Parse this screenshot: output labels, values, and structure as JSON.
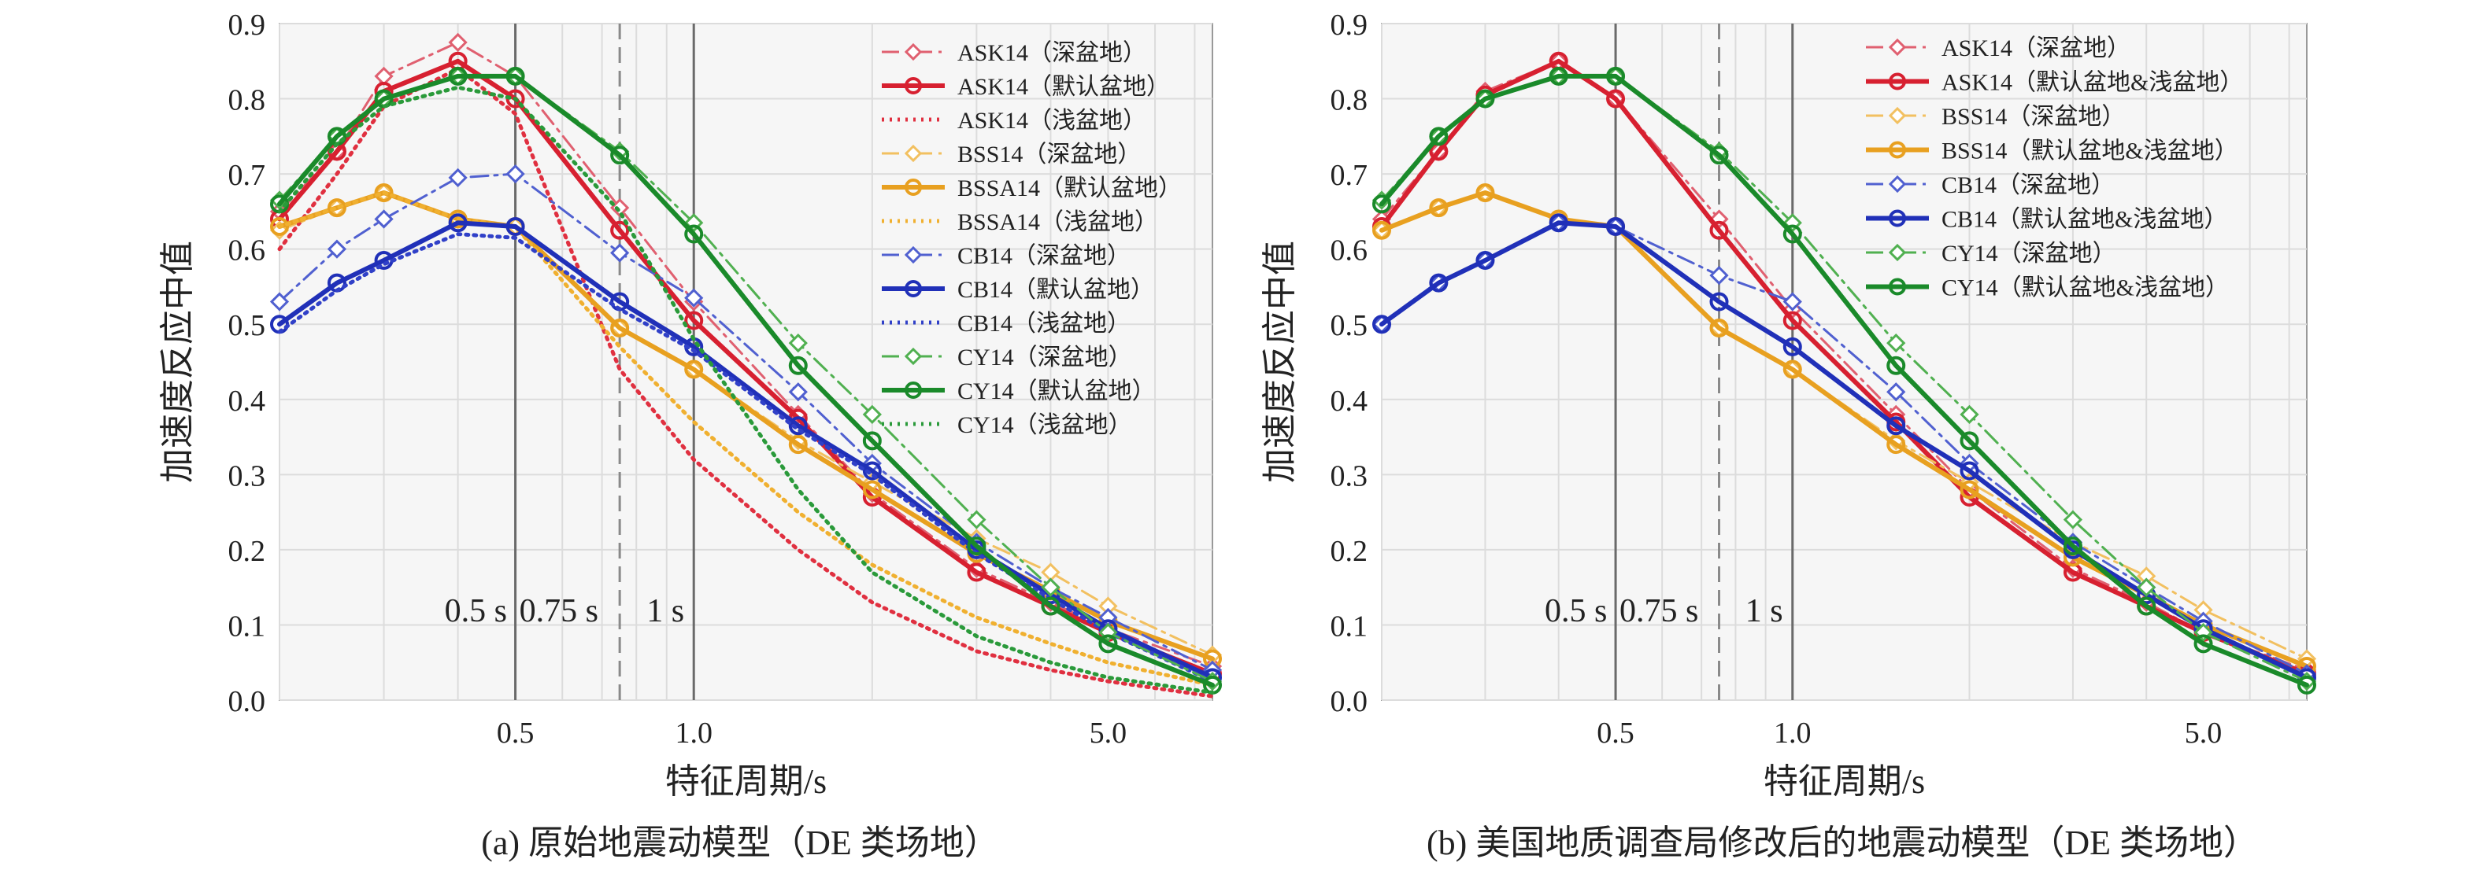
{
  "chart_data": [
    {
      "id": "a",
      "type": "line",
      "caption": "(a) 原始地震动模型（DE 类场地）",
      "xlabel": "特征周期/s",
      "ylabel": "加速度反应中值",
      "x_scale": "log",
      "xlim": [
        0.2,
        7.5
      ],
      "ylim": [
        0,
        0.9
      ],
      "x_ticks": [
        {
          "v": 0.5,
          "label": "0.5"
        },
        {
          "v": 1.0,
          "label": "1.0"
        },
        {
          "v": 5.0,
          "label": "5.0"
        }
      ],
      "y_ticks": [
        "0.0",
        "0.1",
        "0.2",
        "0.3",
        "0.4",
        "0.5",
        "0.6",
        "0.7",
        "0.8",
        "0.9"
      ],
      "grid": true,
      "legend_position": "top-right",
      "vlines": [
        {
          "x": 0.5,
          "style": "solid",
          "label": "0.5 s"
        },
        {
          "x": 0.75,
          "style": "dashed",
          "label": "0.75 s"
        },
        {
          "x": 1.0,
          "style": "solid",
          "label": "1 s"
        }
      ],
      "x": [
        0.2,
        0.25,
        0.3,
        0.4,
        0.5,
        0.75,
        1.0,
        1.5,
        2.0,
        3.0,
        4.0,
        5.0,
        7.5
      ],
      "series": [
        {
          "name": "ASK14（深盆地）",
          "color": "#e06070",
          "style": "dashdot",
          "marker": "diamond",
          "width": 3,
          "values": [
            0.65,
            0.73,
            0.83,
            0.875,
            0.83,
            0.655,
            0.53,
            0.38,
            0.275,
            0.175,
            0.13,
            0.095,
            0.045
          ]
        },
        {
          "name": "ASK14（默认盆地）",
          "color": "#d72030",
          "style": "solid",
          "marker": "circle",
          "width": 6,
          "values": [
            0.64,
            0.73,
            0.81,
            0.85,
            0.8,
            0.625,
            0.505,
            0.375,
            0.27,
            0.17,
            0.125,
            0.09,
            0.035
          ]
        },
        {
          "name": "ASK14（浅盆地）",
          "color": "#e03040",
          "style": "dotted",
          "marker": "none",
          "width": 5,
          "values": [
            0.6,
            0.7,
            0.79,
            0.84,
            0.78,
            0.44,
            0.32,
            0.2,
            0.13,
            0.065,
            0.04,
            0.025,
            0.005
          ]
        },
        {
          "name": "BSS14（深盆地）",
          "color": "#f2c060",
          "style": "dashdot",
          "marker": "diamond",
          "width": 3,
          "values": [
            0.625,
            0.655,
            0.675,
            0.64,
            0.63,
            0.495,
            0.44,
            0.345,
            0.29,
            0.215,
            0.17,
            0.125,
            0.06
          ]
        },
        {
          "name": "BSSA14（默认盆地）",
          "color": "#e8a020",
          "style": "solid",
          "marker": "circle",
          "width": 6,
          "values": [
            0.63,
            0.655,
            0.675,
            0.64,
            0.63,
            0.495,
            0.44,
            0.34,
            0.28,
            0.195,
            0.145,
            0.105,
            0.055
          ]
        },
        {
          "name": "BSSA14（浅盆地）",
          "color": "#f0b030",
          "style": "dotted",
          "marker": "none",
          "width": 5,
          "values": [
            0.63,
            0.655,
            0.675,
            0.64,
            0.63,
            0.47,
            0.37,
            0.25,
            0.18,
            0.11,
            0.075,
            0.05,
            0.02
          ]
        },
        {
          "name": "CB14（深盆地）",
          "color": "#5060d0",
          "style": "dashdot",
          "marker": "diamond",
          "width": 3,
          "values": [
            0.53,
            0.6,
            0.64,
            0.695,
            0.7,
            0.595,
            0.535,
            0.41,
            0.315,
            0.21,
            0.15,
            0.11,
            0.04
          ]
        },
        {
          "name": "CB14（默认盆地）",
          "color": "#2030b8",
          "style": "solid",
          "marker": "circle",
          "width": 6,
          "values": [
            0.5,
            0.555,
            0.585,
            0.635,
            0.63,
            0.53,
            0.47,
            0.365,
            0.305,
            0.2,
            0.14,
            0.095,
            0.03
          ]
        },
        {
          "name": "CB14（浅盆地）",
          "color": "#3040c8",
          "style": "dotted",
          "marker": "none",
          "width": 5,
          "values": [
            0.49,
            0.545,
            0.58,
            0.62,
            0.615,
            0.52,
            0.465,
            0.36,
            0.3,
            0.195,
            0.135,
            0.09,
            0.025
          ]
        },
        {
          "name": "CY14（深盆地）",
          "color": "#50b050",
          "style": "dashdot",
          "marker": "diamond",
          "width": 3,
          "values": [
            0.665,
            0.75,
            0.8,
            0.83,
            0.83,
            0.73,
            0.635,
            0.475,
            0.38,
            0.24,
            0.15,
            0.09,
            0.025
          ]
        },
        {
          "name": "CY14（默认盆地）",
          "color": "#1a8a2a",
          "style": "solid",
          "marker": "circle",
          "width": 6,
          "values": [
            0.66,
            0.75,
            0.8,
            0.83,
            0.83,
            0.725,
            0.62,
            0.445,
            0.345,
            0.205,
            0.125,
            0.075,
            0.02
          ]
        },
        {
          "name": "CY14（浅盆地）",
          "color": "#2a9a3a",
          "style": "dotted",
          "marker": "none",
          "width": 5,
          "values": [
            0.65,
            0.74,
            0.79,
            0.815,
            0.8,
            0.65,
            0.48,
            0.28,
            0.17,
            0.085,
            0.05,
            0.03,
            0.01
          ]
        }
      ]
    },
    {
      "id": "b",
      "type": "line",
      "caption": "(b) 美国地质调查局修改后的地震动模型（DE 类场地）",
      "xlabel": "特征周期/s",
      "ylabel": "加速度反应中值",
      "x_scale": "log",
      "xlim": [
        0.2,
        7.5
      ],
      "ylim": [
        0,
        0.9
      ],
      "x_ticks": [
        {
          "v": 0.5,
          "label": "0.5"
        },
        {
          "v": 1.0,
          "label": "1.0"
        },
        {
          "v": 5.0,
          "label": "5.0"
        }
      ],
      "y_ticks": [
        "0.0",
        "0.1",
        "0.2",
        "0.3",
        "0.4",
        "0.5",
        "0.6",
        "0.7",
        "0.8",
        "0.9"
      ],
      "grid": true,
      "legend_position": "top-right",
      "vlines": [
        {
          "x": 0.5,
          "style": "solid",
          "label": "0.5 s"
        },
        {
          "x": 0.75,
          "style": "dashed",
          "label": "0.75 s"
        },
        {
          "x": 1.0,
          "style": "solid",
          "label": "1 s"
        }
      ],
      "x": [
        0.2,
        0.25,
        0.3,
        0.4,
        0.5,
        0.75,
        1.0,
        1.5,
        2.0,
        3.0,
        4.0,
        5.0,
        7.5
      ],
      "series": [
        {
          "name": "ASK14（深盆地）",
          "color": "#e06070",
          "style": "dashdot",
          "marker": "diamond",
          "width": 3,
          "values": [
            0.64,
            0.73,
            0.81,
            0.85,
            0.8,
            0.64,
            0.52,
            0.38,
            0.28,
            0.175,
            0.13,
            0.09,
            0.04
          ]
        },
        {
          "name": "ASK14（默认盆地&浅盆地）",
          "color": "#d72030",
          "style": "solid",
          "marker": "circle",
          "width": 6,
          "values": [
            0.63,
            0.73,
            0.805,
            0.85,
            0.8,
            0.625,
            0.505,
            0.37,
            0.27,
            0.17,
            0.125,
            0.09,
            0.035
          ]
        },
        {
          "name": "BSS14（深盆地）",
          "color": "#f2c060",
          "style": "dashdot",
          "marker": "diamond",
          "width": 3,
          "values": [
            0.625,
            0.655,
            0.675,
            0.64,
            0.63,
            0.495,
            0.44,
            0.345,
            0.29,
            0.21,
            0.165,
            0.12,
            0.055
          ]
        },
        {
          "name": "BSS14（默认盆地&浅盆地）",
          "color": "#e8a020",
          "style": "solid",
          "marker": "circle",
          "width": 6,
          "values": [
            0.625,
            0.655,
            0.675,
            0.64,
            0.63,
            0.495,
            0.44,
            0.34,
            0.28,
            0.19,
            0.14,
            0.1,
            0.045
          ]
        },
        {
          "name": "CB14（深盆地）",
          "color": "#5060d0",
          "style": "dashdot",
          "marker": "diamond",
          "width": 3,
          "values": [
            0.5,
            0.555,
            0.585,
            0.635,
            0.63,
            0.565,
            0.53,
            0.41,
            0.315,
            0.21,
            0.15,
            0.105,
            0.035
          ]
        },
        {
          "name": "CB14（默认盆地&浅盆地）",
          "color": "#2030b8",
          "style": "solid",
          "marker": "circle",
          "width": 6,
          "values": [
            0.5,
            0.555,
            0.585,
            0.635,
            0.63,
            0.53,
            0.47,
            0.365,
            0.305,
            0.2,
            0.14,
            0.095,
            0.03
          ]
        },
        {
          "name": "CY14（深盆地）",
          "color": "#50b050",
          "style": "dashdot",
          "marker": "diamond",
          "width": 3,
          "values": [
            0.665,
            0.75,
            0.8,
            0.83,
            0.83,
            0.73,
            0.635,
            0.475,
            0.38,
            0.24,
            0.15,
            0.09,
            0.025
          ]
        },
        {
          "name": "CY14（默认盆地&浅盆地）",
          "color": "#1a8a2a",
          "style": "solid",
          "marker": "circle",
          "width": 6,
          "values": [
            0.66,
            0.75,
            0.8,
            0.83,
            0.83,
            0.725,
            0.62,
            0.445,
            0.345,
            0.205,
            0.125,
            0.075,
            0.02
          ]
        }
      ]
    }
  ]
}
